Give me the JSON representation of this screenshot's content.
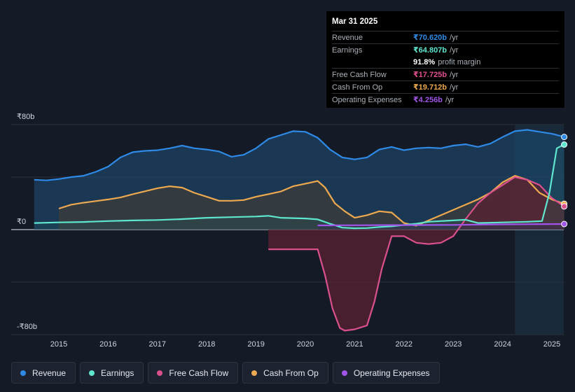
{
  "tooltip": {
    "date": "Mar 31 2025",
    "rows": [
      {
        "name": "Revenue",
        "value": "₹70.620b",
        "unit": "/yr",
        "color": "#2e8ae6"
      },
      {
        "name": "Earnings",
        "value": "₹64.807b",
        "unit": "/yr",
        "color": "#5ee6cf"
      },
      {
        "name": "Free Cash Flow",
        "value": "₹17.725b",
        "unit": "/yr",
        "color": "#e0508f"
      },
      {
        "name": "Cash From Op",
        "value": "₹19.712b",
        "unit": "/yr",
        "color": "#eda94f"
      },
      {
        "name": "Operating Expenses",
        "value": "₹4.256b",
        "unit": "/yr",
        "color": "#a055e8"
      }
    ],
    "profit_margin_value": "91.8%",
    "profit_margin_label": "profit margin"
  },
  "legend": [
    {
      "label": "Revenue",
      "color": "#2e8ae6"
    },
    {
      "label": "Earnings",
      "color": "#5ee6cf"
    },
    {
      "label": "Free Cash Flow",
      "color": "#d9508d"
    },
    {
      "label": "Cash From Op",
      "color": "#eda94f"
    },
    {
      "label": "Operating Expenses",
      "color": "#a055e8"
    }
  ],
  "chart_data": {
    "type": "area",
    "title": "",
    "xlabel": "",
    "ylabel": "",
    "unit": "₹ billions",
    "y_ticks": [
      "₹80b",
      "₹0",
      "-₹80b"
    ],
    "x_ticks": [
      "2015",
      "2016",
      "2017",
      "2018",
      "2019",
      "2020",
      "2021",
      "2022",
      "2023",
      "2024",
      "2025"
    ],
    "ylim": [
      -80,
      80
    ],
    "xlim": [
      2014.5,
      2025.25
    ],
    "highlight_start": 2024.25,
    "series": [
      {
        "name": "Revenue",
        "color": "#2e8ae6",
        "x": [
          2014.5,
          2014.75,
          2015.0,
          2015.25,
          2015.5,
          2015.75,
          2016.0,
          2016.25,
          2016.5,
          2016.75,
          2017.0,
          2017.25,
          2017.5,
          2017.75,
          2018.0,
          2018.25,
          2018.5,
          2018.75,
          2019.0,
          2019.25,
          2019.5,
          2019.75,
          2020.0,
          2020.25,
          2020.5,
          2020.75,
          2021.0,
          2021.25,
          2021.5,
          2021.75,
          2022.0,
          2022.25,
          2022.5,
          2022.75,
          2023.0,
          2023.25,
          2023.5,
          2023.75,
          2024.0,
          2024.25,
          2024.5,
          2024.75,
          2025.0,
          2025.25
        ],
        "values": [
          38,
          37.5,
          38.5,
          40,
          41,
          44,
          48,
          55,
          59,
          60,
          60.5,
          62,
          64,
          62,
          61,
          59.5,
          55.5,
          57,
          62,
          69,
          72,
          75,
          74.5,
          70,
          61,
          55,
          53.5,
          55,
          61,
          63,
          60.5,
          62,
          62.5,
          62,
          64,
          65,
          63,
          65.5,
          70.5,
          75,
          76,
          74.5,
          73,
          70.6
        ]
      },
      {
        "name": "Earnings",
        "color": "#5ee6cf",
        "x": [
          2014.5,
          2015.0,
          2015.5,
          2016.0,
          2016.5,
          2017.0,
          2017.5,
          2018.0,
          2018.5,
          2019.0,
          2019.25,
          2019.5,
          2020.0,
          2020.25,
          2020.5,
          2020.75,
          2021.0,
          2021.25,
          2021.5,
          2021.75,
          2022.0,
          2022.25,
          2022.5,
          2022.75,
          2023.0,
          2023.25,
          2023.5,
          2024.0,
          2024.5,
          2024.8,
          2024.95,
          2025.1,
          2025.25
        ],
        "values": [
          5,
          5.5,
          5.8,
          6.5,
          7,
          7.3,
          8,
          9,
          9.5,
          10,
          10.5,
          9,
          8.5,
          7.8,
          4.5,
          1.5,
          1,
          1.2,
          2,
          2.5,
          3.5,
          4.5,
          6,
          6.5,
          7,
          7.5,
          5,
          5.5,
          6,
          6.5,
          28,
          62,
          64.8
        ]
      },
      {
        "name": "Free Cash Flow",
        "color": "#d9508d",
        "x": [
          2019.25,
          2019.5,
          2019.75,
          2020.0,
          2020.25,
          2020.4,
          2020.55,
          2020.7,
          2020.8,
          2021.0,
          2021.25,
          2021.4,
          2021.55,
          2021.75,
          2022.0,
          2022.25,
          2022.5,
          2022.75,
          2023.0,
          2023.25,
          2023.5,
          2023.75,
          2024.0,
          2024.25,
          2024.5,
          2024.75,
          2025.0,
          2025.25
        ],
        "values": [
          -15,
          -15,
          -15,
          -15,
          -15,
          -35,
          -60,
          -75,
          -77,
          -76,
          -73,
          -55,
          -30,
          -5,
          -5,
          -10,
          -11,
          -10,
          -5,
          8,
          20,
          28,
          34,
          40,
          38,
          34,
          24,
          17.7
        ]
      },
      {
        "name": "Cash From Op",
        "color": "#eda94f",
        "x": [
          2015.0,
          2015.25,
          2015.5,
          2016.0,
          2016.25,
          2016.5,
          2017.0,
          2017.25,
          2017.5,
          2017.75,
          2018.0,
          2018.25,
          2018.5,
          2018.75,
          2019.0,
          2019.5,
          2019.75,
          2020.0,
          2020.25,
          2020.4,
          2020.6,
          2020.8,
          2021.0,
          2021.25,
          2021.5,
          2021.75,
          2022.0,
          2022.25,
          2022.5,
          2022.75,
          2023.0,
          2023.25,
          2023.5,
          2023.75,
          2024.0,
          2024.25,
          2024.5,
          2024.75,
          2025.0,
          2025.25
        ],
        "values": [
          16,
          19,
          20.5,
          23,
          24.5,
          27,
          31.5,
          33,
          32,
          28,
          25,
          22,
          22,
          22.5,
          25,
          29,
          33,
          35,
          37,
          32,
          20,
          14,
          9,
          11,
          14,
          13,
          5,
          3,
          7,
          11,
          15,
          19,
          23,
          28,
          36,
          41,
          38,
          28,
          23,
          19.7
        ]
      },
      {
        "name": "Operating Expenses",
        "color": "#a055e8",
        "x": [
          2020.25,
          2020.5,
          2020.75,
          2021.0,
          2021.5,
          2022.0,
          2022.5,
          2023.0,
          2023.5,
          2024.0,
          2024.5,
          2025.0,
          2025.25
        ],
        "values": [
          3.2,
          3.2,
          3.3,
          3.3,
          3.4,
          3.4,
          3.5,
          3.6,
          3.8,
          4,
          4.1,
          4.2,
          4.256
        ]
      }
    ]
  }
}
